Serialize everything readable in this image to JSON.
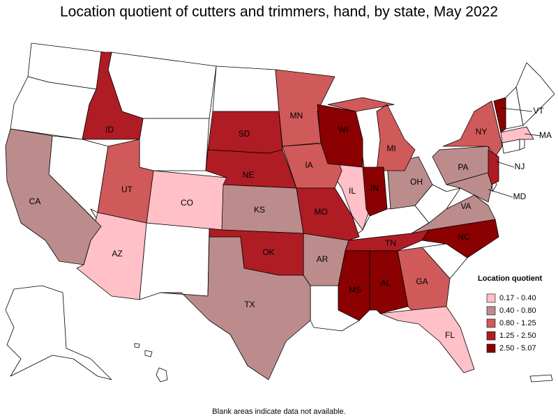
{
  "title": "Location quotient of cutters and trimmers, hand, by state, May 2022",
  "footnote": "Blank areas indicate data not available.",
  "legend": {
    "title": "Location quotient",
    "classes": [
      {
        "label": "0.17 - 0.40",
        "color": "#ffc0c8"
      },
      {
        "label": "0.40 - 0.80",
        "color": "#bc8c8c"
      },
      {
        "label": "0.80 - 1.25",
        "color": "#d05a5a"
      },
      {
        "label": "1.25 - 2.50",
        "color": "#b01c24"
      },
      {
        "label": "2.50 - 5.07",
        "color": "#8b0000"
      }
    ]
  },
  "states": [
    {
      "label": "CO",
      "color": "#ffc0c8"
    },
    {
      "label": "AZ",
      "color": "#ffc0c8"
    },
    {
      "label": "IL",
      "color": "#ffc0c8"
    },
    {
      "label": "FL",
      "color": "#ffc0c8"
    },
    {
      "label": "MA",
      "color": "#ffc0c8"
    },
    {
      "label": "CA",
      "color": "#bc8c8c"
    },
    {
      "label": "KS",
      "color": "#bc8c8c"
    },
    {
      "label": "TX",
      "color": "#bc8c8c"
    },
    {
      "label": "AR",
      "color": "#bc8c8c"
    },
    {
      "label": "OH",
      "color": "#bc8c8c"
    },
    {
      "label": "PA",
      "color": "#bc8c8c"
    },
    {
      "label": "VA",
      "color": "#bc8c8c"
    },
    {
      "label": "MD",
      "color": "#bc8c8c"
    },
    {
      "label": "UT",
      "color": "#d05a5a"
    },
    {
      "label": "MN",
      "color": "#d05a5a"
    },
    {
      "label": "IA",
      "color": "#d05a5a"
    },
    {
      "label": "MI",
      "color": "#d05a5a"
    },
    {
      "label": "NY",
      "color": "#d05a5a"
    },
    {
      "label": "GA",
      "color": "#d05a5a"
    },
    {
      "label": "ID",
      "color": "#b01c24"
    },
    {
      "label": "SD",
      "color": "#b01c24"
    },
    {
      "label": "NE",
      "color": "#b01c24"
    },
    {
      "label": "MO",
      "color": "#b01c24"
    },
    {
      "label": "OK",
      "color": "#b01c24"
    },
    {
      "label": "TN",
      "color": "#b01c24"
    },
    {
      "label": "NJ",
      "color": "#b01c24"
    },
    {
      "label": "WI",
      "color": "#8b0000"
    },
    {
      "label": "IN",
      "color": "#8b0000"
    },
    {
      "label": "MS",
      "color": "#8b0000"
    },
    {
      "label": "AL",
      "color": "#8b0000"
    },
    {
      "label": "NC",
      "color": "#8b0000"
    },
    {
      "label": "VT",
      "color": "#8b0000"
    }
  ]
}
